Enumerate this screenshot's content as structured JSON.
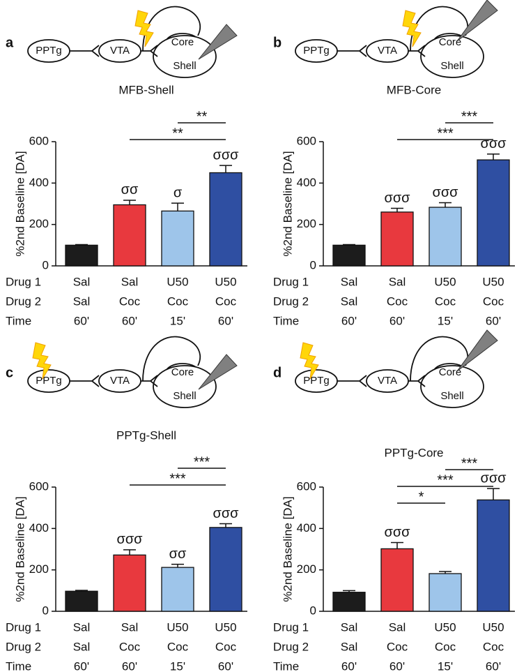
{
  "chart_data": [
    {
      "type": "bar",
      "panel_label": "a",
      "title": "MFB-Shell",
      "schematic_labels": [
        "PPTg",
        "VTA",
        "Core",
        "Shell"
      ],
      "stimulation": "PPTg VTA",
      "stim_site": "VTA",
      "recording": "Shell",
      "ylabel": "%2nd Baseline [DA]",
      "ylim": [
        0,
        600
      ],
      "yticks": [
        0,
        200,
        400,
        600
      ],
      "row_labels": [
        "Drug 1",
        "Drug 2",
        "Time"
      ],
      "categories": [
        "Sal",
        "Sal",
        "U50",
        "U50"
      ],
      "drug2": [
        "Sal",
        "Coc",
        "Coc",
        "Coc"
      ],
      "time": [
        "60'",
        "60'",
        "15'",
        "60'"
      ],
      "values": [
        100,
        295,
        265,
        450
      ],
      "errors": [
        3,
        22,
        38,
        35
      ],
      "colors": [
        "#1c1c1c",
        "#e8393e",
        "#9ec5ea",
        "#2f4fa2"
      ],
      "bar_annotations": [
        null,
        "σσ",
        "σ",
        "σσσ"
      ],
      "brackets": [
        {
          "from": 1,
          "to": 3,
          "label": "**"
        },
        {
          "from": 2,
          "to": 3,
          "label": "**"
        }
      ]
    },
    {
      "type": "bar",
      "panel_label": "b",
      "title": "MFB-Core",
      "schematic_labels": [
        "PPTg",
        "VTA",
        "Core",
        "Shell"
      ],
      "stim_site": "VTA",
      "recording": "Core",
      "ylabel": "%2nd Baseline [DA]",
      "ylim": [
        0,
        600
      ],
      "yticks": [
        0,
        200,
        400,
        600
      ],
      "row_labels": [
        "Drug 1",
        "Drug 2",
        "Time"
      ],
      "categories": [
        "Sal",
        "Sal",
        "U50",
        "U50"
      ],
      "drug2": [
        "Sal",
        "Coc",
        "Coc",
        "Coc"
      ],
      "time": [
        "60'",
        "60'",
        "15'",
        "60'"
      ],
      "values": [
        100,
        260,
        283,
        512
      ],
      "errors": [
        3,
        18,
        22,
        28
      ],
      "colors": [
        "#1c1c1c",
        "#e8393e",
        "#9ec5ea",
        "#2f4fa2"
      ],
      "bar_annotations": [
        null,
        "σσσ",
        "σσσ",
        "σσσ"
      ],
      "brackets": [
        {
          "from": 1,
          "to": 3,
          "label": "***"
        },
        {
          "from": 2,
          "to": 3,
          "label": "***"
        }
      ]
    },
    {
      "type": "bar",
      "panel_label": "c",
      "title": "PPTg-Shell",
      "schematic_labels": [
        "PPTg",
        "VTA",
        "Core",
        "Shell"
      ],
      "stim_site": "PPTg",
      "recording": "Shell",
      "ylabel": "%2nd Baseline [DA]",
      "ylim": [
        0,
        600
      ],
      "yticks": [
        0,
        200,
        400,
        600
      ],
      "row_labels": [
        "Drug 1",
        "Drug 2",
        "Time"
      ],
      "categories": [
        "Sal",
        "Sal",
        "U50",
        "U50"
      ],
      "drug2": [
        "Sal",
        "Coc",
        "Coc",
        "Coc"
      ],
      "time": [
        "60'",
        "60'",
        "15'",
        "60'"
      ],
      "values": [
        97,
        272,
        212,
        405
      ],
      "errors": [
        4,
        25,
        15,
        18
      ],
      "colors": [
        "#1c1c1c",
        "#e8393e",
        "#9ec5ea",
        "#2f4fa2"
      ],
      "bar_annotations": [
        null,
        "σσσ",
        "σσ",
        "σσσ"
      ],
      "brackets": [
        {
          "from": 1,
          "to": 3,
          "label": "***"
        },
        {
          "from": 2,
          "to": 3,
          "label": "***"
        }
      ]
    },
    {
      "type": "bar",
      "panel_label": "d",
      "title": "PPTg-Core",
      "schematic_labels": [
        "PPTg",
        "VTA",
        "Core",
        "Shell"
      ],
      "stim_site": "PPTg",
      "recording": "Core",
      "ylabel": "%2nd Baseline [DA]",
      "ylim": [
        0,
        600
      ],
      "yticks": [
        0,
        200,
        400,
        600
      ],
      "row_labels": [
        "Drug 1",
        "Drug 2",
        "Time"
      ],
      "categories": [
        "Sal",
        "Sal",
        "U50",
        "U50"
      ],
      "drug2": [
        "Sal",
        "Coc",
        "Coc",
        "Coc"
      ],
      "time": [
        "60'",
        "60'",
        "15'",
        "60'"
      ],
      "values": [
        92,
        302,
        182,
        538
      ],
      "errors": [
        8,
        30,
        10,
        55
      ],
      "colors": [
        "#1c1c1c",
        "#e8393e",
        "#9ec5ea",
        "#2f4fa2"
      ],
      "bar_annotations": [
        null,
        "σσσ",
        null,
        "σσσ"
      ],
      "brackets": [
        {
          "from": 1,
          "to": 2,
          "label": "*"
        },
        {
          "from": 1,
          "to": 3,
          "label": "***"
        },
        {
          "from": 2,
          "to": 3,
          "label": "***"
        }
      ]
    }
  ]
}
